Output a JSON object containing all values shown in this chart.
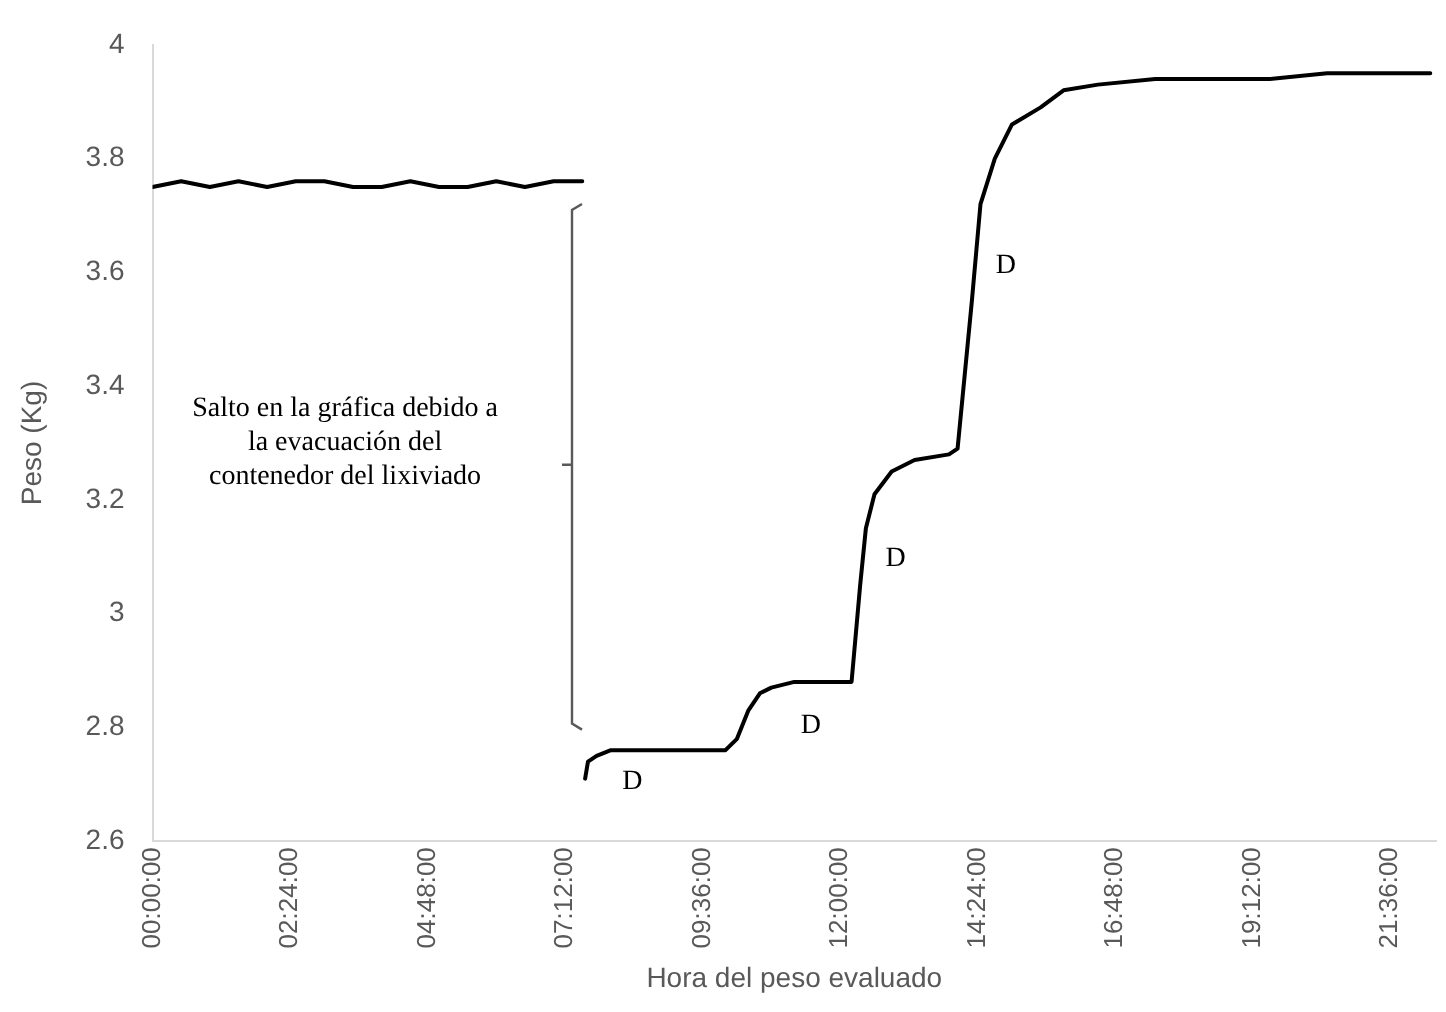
{
  "chart_data": {
    "type": "line",
    "xlabel": "Hora del peso evaluado",
    "ylabel": "Peso (Kg)",
    "x": [
      0,
      0.5,
      1,
      1.5,
      2,
      2.5,
      3,
      3.5,
      4,
      4.5,
      5,
      5.5,
      6,
      6.5,
      7,
      7.5,
      7.52,
      7.55,
      7.6,
      7.75,
      8,
      8.5,
      9,
      9.5,
      10,
      10.2,
      10.4,
      10.6,
      10.8,
      11.2,
      11.6,
      12.2,
      12.35,
      12.45,
      12.6,
      12.9,
      13.3,
      13.9,
      14.05,
      14.3,
      14.45,
      14.7,
      15,
      15.5,
      15.9,
      16.5,
      17.5,
      18.5,
      19.5,
      20.5,
      21.5,
      22.3
    ],
    "series": [
      {
        "color": "#000000",
        "values": [
          3.75,
          3.76,
          3.75,
          3.76,
          3.75,
          3.76,
          3.76,
          3.75,
          3.75,
          3.76,
          3.75,
          3.75,
          3.76,
          3.75,
          3.76,
          3.76,
          null,
          2.71,
          2.74,
          2.75,
          2.76,
          2.76,
          2.76,
          2.76,
          2.76,
          2.78,
          2.83,
          2.86,
          2.87,
          2.88,
          2.88,
          2.88,
          3.05,
          3.15,
          3.21,
          3.25,
          3.27,
          3.28,
          3.29,
          3.55,
          3.72,
          3.8,
          3.86,
          3.89,
          3.92,
          3.93,
          3.94,
          3.94,
          3.94,
          3.95,
          3.95,
          3.95
        ]
      }
    ],
    "xlim": [
      0,
      22.4
    ],
    "xticks": [
      {
        "value": 0,
        "label": "00:00:00"
      },
      {
        "value": 2.4,
        "label": "02:24:00"
      },
      {
        "value": 4.8,
        "label": "04:48:00"
      },
      {
        "value": 7.2,
        "label": "07:12:00"
      },
      {
        "value": 9.6,
        "label": "09:36:00"
      },
      {
        "value": 12,
        "label": "12:00:00"
      },
      {
        "value": 14.4,
        "label": "14:24:00"
      },
      {
        "value": 16.8,
        "label": "16:48:00"
      },
      {
        "value": 19.2,
        "label": "19:12:00"
      },
      {
        "value": 21.6,
        "label": "21:36:00"
      }
    ],
    "ylim": [
      2.6,
      4
    ],
    "yticks": [
      2.6,
      2.8,
      3,
      3.2,
      3.4,
      3.6,
      3.8,
      4
    ],
    "grid": false,
    "legend": false,
    "marker": "none",
    "line_style": "solid",
    "annotations": [
      "Salto en la gráfica debido a\nla evacuación del\ncontenedor del lixiviado",
      "D",
      "D",
      "D",
      "D"
    ]
  }
}
